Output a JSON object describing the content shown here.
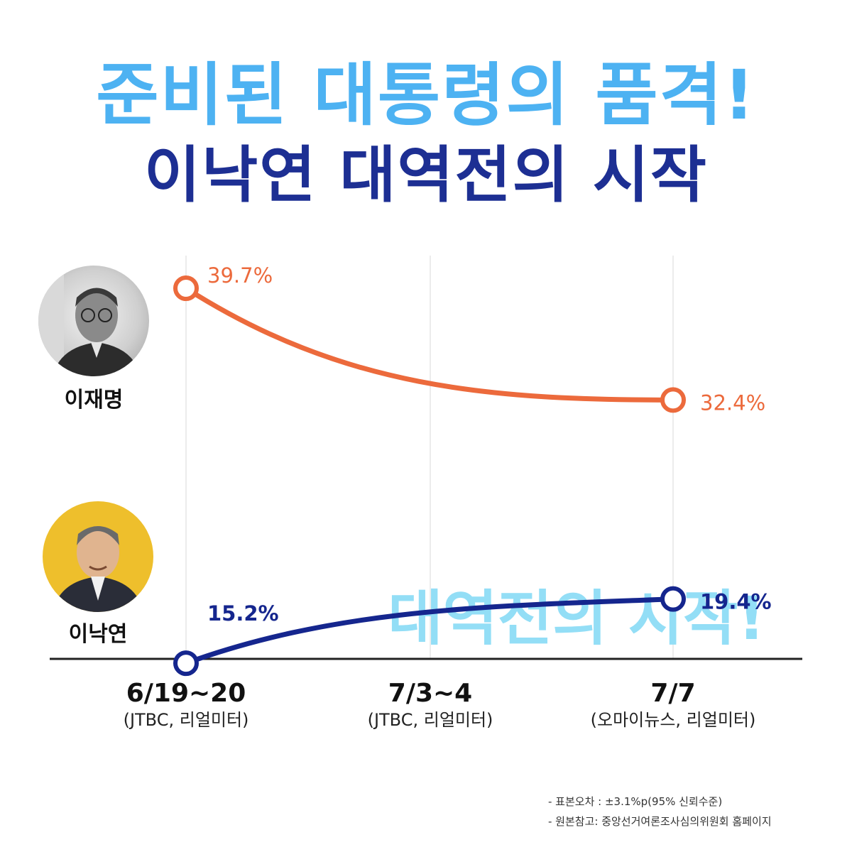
{
  "title_line1": "준비된 대통령의 품격!",
  "title_line2": "이낙연 대역전의 시작",
  "watermark": "대역전의 시작!",
  "candidates": [
    {
      "name": "이재명"
    },
    {
      "name": "이낙연"
    }
  ],
  "chart_data": {
    "type": "line",
    "categories": [
      "6/19~20",
      "7/3~4",
      "7/7"
    ],
    "category_sources": [
      "(JTBC, 리얼미터)",
      "(JTBC, 리얼미터)",
      "(오마이뉴스, 리얼미터)"
    ],
    "series": [
      {
        "name": "이재명",
        "color": "#ec6a3c",
        "points": [
          {
            "category": "6/19~20",
            "value": 39.7,
            "label": "39.7%"
          },
          {
            "category": "7/7",
            "value": 32.4,
            "label": "32.4%"
          }
        ]
      },
      {
        "name": "이낙연",
        "color": "#15268e",
        "points": [
          {
            "category": "6/19~20",
            "value": 15.2,
            "label": "15.2%"
          },
          {
            "category": "7/7",
            "value": 19.4,
            "label": "19.4%"
          }
        ]
      }
    ],
    "unit": "%",
    "ylim": [
      14,
      41
    ],
    "grid": "vertical"
  },
  "footnotes": [
    "- 표본오차 : ±3.1%p(95% 신뢰수준)",
    "- 원본참고: 중앙선거여론조사심의위원회 홈페이지"
  ]
}
